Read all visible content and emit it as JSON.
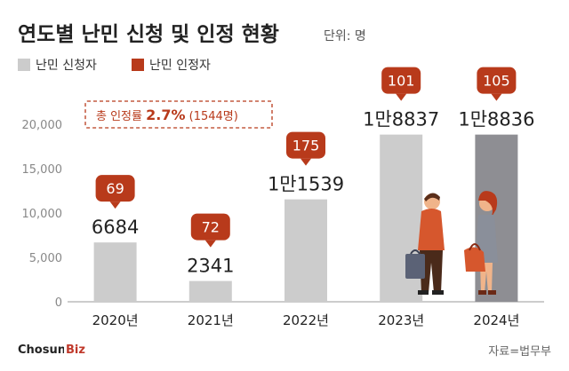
{
  "title": "연도별 난민 신청 및 인정 현황",
  "unit": "단위: 명",
  "legend": [
    {
      "label": "난민 신청자",
      "color": "#cccccc"
    },
    {
      "label": "난민 인정자",
      "color": "#b83a1b"
    }
  ],
  "annotation": "총 인정률 2.7% (1544명)",
  "annotation_parts": {
    "prefix": "총 인정률 ",
    "rate": "2.7%",
    "suffix": " (1544명)"
  },
  "source": "자료=법무부",
  "brand": {
    "name": "Chosun",
    "tag": "Biz"
  },
  "colors": {
    "applicants": "#cccccc",
    "applicants_highlight": "#8e8e93",
    "recognized": "#b83a1b",
    "annotation": "#b83a1b",
    "axis": "#999999",
    "text": "#222222"
  },
  "chart_data": {
    "type": "bar",
    "title": "연도별 난민 신청 및 인정 현황",
    "categories": [
      "2020년",
      "2021년",
      "2022년",
      "2023년",
      "2024년"
    ],
    "series": [
      {
        "name": "난민 신청자",
        "values": [
          6684,
          2341,
          11539,
          18837,
          18836
        ],
        "labels": [
          "6684",
          "2341",
          "1만1539",
          "1만8837",
          "1만8836"
        ]
      },
      {
        "name": "난민 인정자",
        "values": [
          69,
          72,
          175,
          101,
          105
        ],
        "labels": [
          "69",
          "72",
          "175",
          "101",
          "105"
        ]
      }
    ],
    "y_ticks": [
      "0",
      "5,000",
      "10,000",
      "15,000",
      "20,000"
    ],
    "ylim": [
      0,
      20000
    ],
    "grid": false,
    "legend_position": "top-left"
  }
}
